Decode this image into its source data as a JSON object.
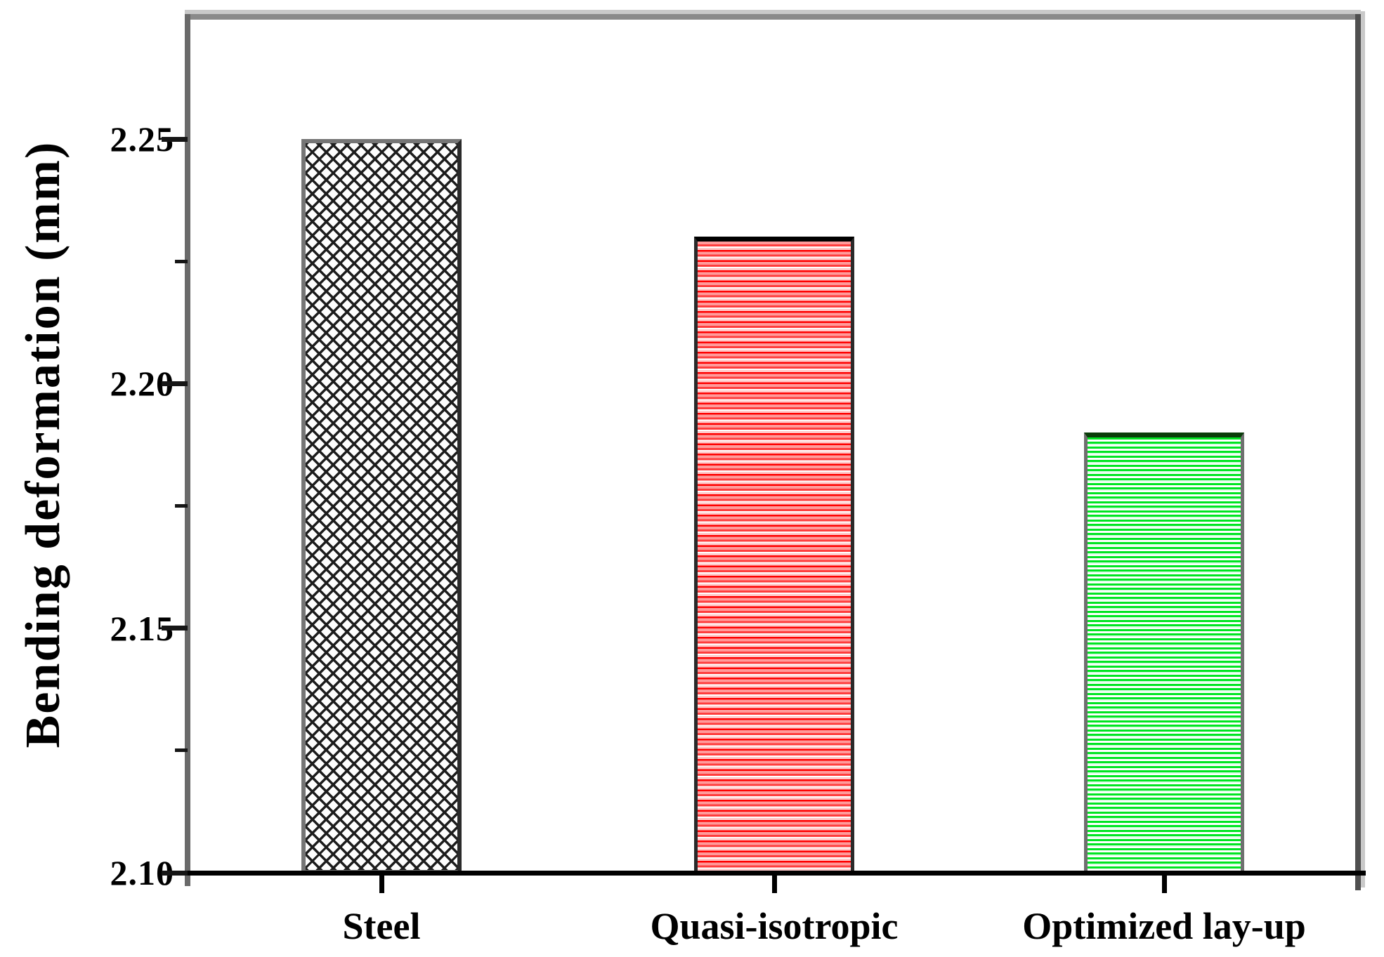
{
  "chart_data": {
    "type": "bar",
    "title": "",
    "xlabel": "",
    "ylabel": "Bending deformation (mm)",
    "categories": [
      "Steel",
      "Quasi-isotropic",
      "Optimized lay-up"
    ],
    "values": [
      2.25,
      2.23,
      2.19
    ],
    "ylim": [
      2.1,
      2.275
    ],
    "yticks": [
      2.1,
      2.15,
      2.2,
      2.25
    ],
    "ytick_labels": [
      "2.10",
      "2.15",
      "2.20",
      "2.25"
    ],
    "minor_yticks": [
      2.125,
      2.175,
      2.225
    ],
    "grid": false,
    "legend": "none",
    "bar_patterns": [
      "crosshatch-black",
      "horizontal-stripes-red",
      "horizontal-stripes-green"
    ],
    "colors": {
      "hatch_line": "#1d1d1d",
      "red_accent": "#ff0000",
      "green_accent": "#00e522",
      "axis_gray": "#6a6a6a",
      "axis_black": "#000000"
    }
  }
}
